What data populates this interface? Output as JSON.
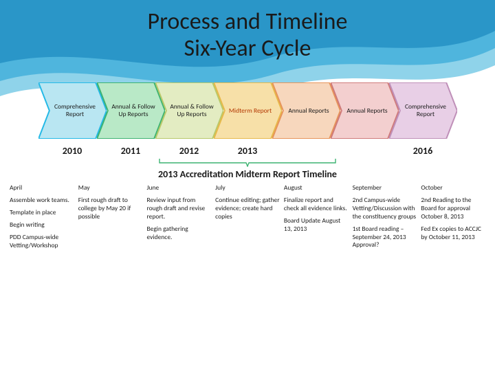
{
  "title_line1": "Process and Timeline",
  "title_line2": "Six-Year Cycle",
  "chevrons": [
    {
      "label": "Comprehensive Report",
      "fill": "#b9e6f2",
      "stroke": "#24b9e6",
      "textColor": "#1a1a1a"
    },
    {
      "label": "Annual & Follow Up Reports",
      "fill": "#b9e9c7",
      "stroke": "#3cb371",
      "textColor": "#1a1a1a"
    },
    {
      "label": "Annual & Follow Up Reports",
      "fill": "#e3ecc2",
      "stroke": "#b8c96a",
      "textColor": "#1a1a1a"
    },
    {
      "label": "Midterm Report",
      "fill": "#f7e0a8",
      "stroke": "#e7b94a",
      "textColor": "#b33600"
    },
    {
      "label": "Annual Reports",
      "fill": "#f7d7bd",
      "stroke": "#e7945a",
      "textColor": "#1a1a1a"
    },
    {
      "label": "Annual Reports",
      "fill": "#f3cfcf",
      "stroke": "#cf7a7a",
      "textColor": "#1a1a1a"
    },
    {
      "label": "Comprehensive Report",
      "fill": "#e8cfe6",
      "stroke": "#bf8fb8",
      "textColor": "#1a1a1a"
    }
  ],
  "years": [
    "2010",
    "2011",
    "2012",
    "2013",
    "",
    "",
    "2016"
  ],
  "bracket_color": "#3cb371",
  "subhead": "2013 Accreditation Midterm Report Timeline",
  "timeline": [
    {
      "month": "April",
      "items": [
        "Assemble work teams.",
        "Template in place",
        "Begin writing",
        "PDD Campus-wide Vetting/Workshop"
      ]
    },
    {
      "month": "May",
      "items": [
        "First rough draft to college by May 20 if possible"
      ]
    },
    {
      "month": "June",
      "items": [
        "Review input from rough draft and revise report.",
        "Begin gathering evidence."
      ]
    },
    {
      "month": "July",
      "items": [
        "Continue editing; gather evidence; create hard copies"
      ]
    },
    {
      "month": "August",
      "items": [
        "Finalize report and check all evidence links.",
        " Board Update August 13, 2013"
      ]
    },
    {
      "month": "September",
      "items": [
        "2nd Campus-wide Vetting/Discussion with the constituency groups",
        "1st Board reading – September 24, 2013 Approval?"
      ]
    },
    {
      "month": "October",
      "items": [
        "2nd Reading to the Board for approval October 8, 2013",
        "Fed Ex copies to ACCJC by October 11, 2013"
      ]
    }
  ],
  "wave_colors": {
    "dark": "#2a96c8",
    "mid": "#4fb5dd",
    "light": "#8fd3ea"
  }
}
